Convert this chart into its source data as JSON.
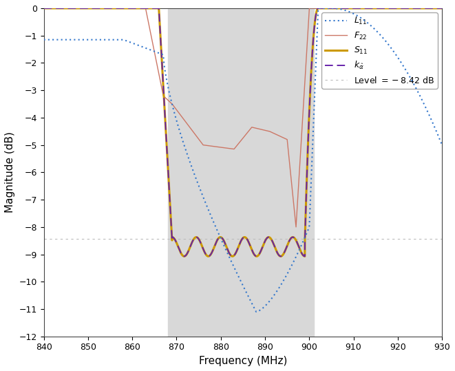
{
  "title": "",
  "xlabel": "Frequency (MHz)",
  "ylabel": "Magnitude (dB)",
  "xlim": [
    840,
    930
  ],
  "ylim": [
    -12,
    0
  ],
  "xticks": [
    840,
    850,
    860,
    870,
    880,
    890,
    900,
    910,
    920,
    930
  ],
  "yticks": [
    0,
    -1,
    -2,
    -3,
    -4,
    -5,
    -6,
    -7,
    -8,
    -9,
    -10,
    -11,
    -12
  ],
  "shaded_region": [
    868,
    901
  ],
  "level_value": -8.42,
  "colors": {
    "L11": "#3377cc",
    "F22": "#cc7766",
    "S11": "#cc9900",
    "k_alpha": "#6622aa",
    "level": "#bbbbbb"
  },
  "background": "#ffffff"
}
